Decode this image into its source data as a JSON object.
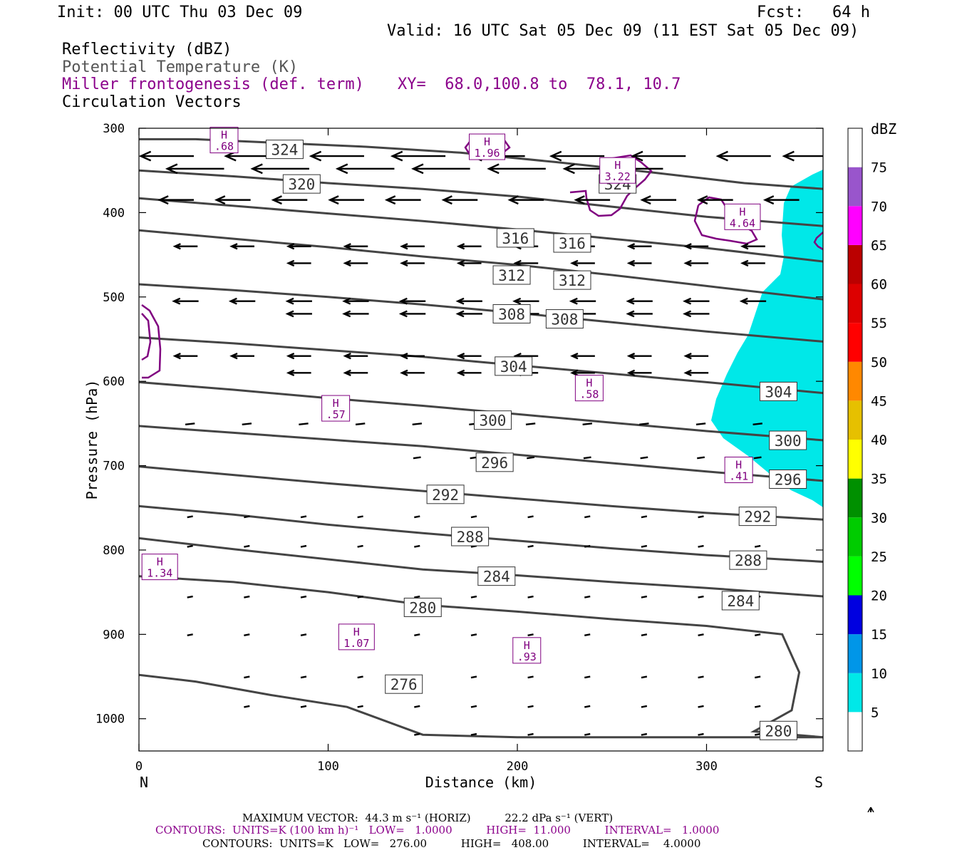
{
  "header": {
    "init": "Init: 00 UTC Thu 03 Dec 09",
    "fcst": "Fcst:   64 h",
    "valid": "Valid: 16 UTC Sat 05 Dec 09 (11 EST Sat 05 Dec 09)",
    "field1": "Reflectivity (dBZ)",
    "field2": "Potential Temperature (K)",
    "field3": "Miller frontogenesis (def. term)",
    "xy": "XY=  68.0,100.8 to  78.1, 10.7",
    "field4": "Circulation Vectors"
  },
  "colors": {
    "theta": "#444444",
    "fronto": "#800080",
    "reflectivity_fill": "#00e8e8",
    "vector": "#000000"
  },
  "chart_data": {
    "type": "cross-section",
    "xlabel": "Distance (km)",
    "ylabel": "Pressure (hPa)",
    "x_ticks": [
      "0",
      "100",
      "200",
      "300"
    ],
    "x_tick_values": [
      0,
      100,
      200,
      300
    ],
    "xlim": [
      0,
      362
    ],
    "y_ticks": [
      "300",
      "400",
      "500",
      "600",
      "700",
      "800",
      "900",
      "1000"
    ],
    "y_tick_values": [
      300,
      400,
      500,
      600,
      700,
      800,
      900,
      1000
    ],
    "ylim": [
      1040,
      300
    ],
    "left_end": "N",
    "right_end": "S",
    "potential_temperature_contours": [
      {
        "label": "324",
        "points": [
          [
            0,
            313
          ],
          [
            30,
            313
          ],
          [
            70,
            317
          ],
          [
            120,
            322
          ],
          [
            170,
            329
          ],
          [
            220,
            340
          ],
          [
            270,
            352
          ],
          [
            320,
            365
          ],
          [
            362,
            372
          ]
        ],
        "label_positions": [
          [
            77,
            325
          ],
          [
            253,
            366
          ]
        ]
      },
      {
        "label": "320",
        "points": [
          [
            0,
            350
          ],
          [
            50,
            357
          ],
          [
            100,
            365
          ],
          [
            150,
            372
          ],
          [
            200,
            381
          ],
          [
            250,
            393
          ],
          [
            300,
            405
          ],
          [
            362,
            416
          ]
        ],
        "label_positions": [
          [
            86,
            366
          ]
        ]
      },
      {
        "label": "316",
        "points": [
          [
            0,
            383
          ],
          [
            50,
            392
          ],
          [
            100,
            401
          ],
          [
            150,
            410
          ],
          [
            200,
            420
          ],
          [
            250,
            431
          ],
          [
            300,
            442
          ],
          [
            362,
            458
          ]
        ],
        "label_positions": [
          [
            199,
            430
          ],
          [
            229,
            436
          ]
        ]
      },
      {
        "label": "312",
        "points": [
          [
            0,
            421
          ],
          [
            50,
            431
          ],
          [
            100,
            441
          ],
          [
            150,
            452
          ],
          [
            200,
            462
          ],
          [
            250,
            474
          ],
          [
            300,
            487
          ],
          [
            362,
            503
          ]
        ],
        "label_positions": [
          [
            197,
            474
          ],
          [
            229,
            480
          ]
        ]
      },
      {
        "label": "308",
        "points": [
          [
            0,
            485
          ],
          [
            50,
            492
          ],
          [
            100,
            500
          ],
          [
            150,
            509
          ],
          [
            200,
            519
          ],
          [
            250,
            530
          ],
          [
            300,
            541
          ],
          [
            362,
            553
          ]
        ],
        "label_positions": [
          [
            197,
            520
          ],
          [
            225,
            526
          ]
        ]
      },
      {
        "label": "304",
        "points": [
          [
            0,
            548
          ],
          [
            50,
            555
          ],
          [
            100,
            563
          ],
          [
            150,
            571
          ],
          [
            200,
            581
          ],
          [
            250,
            591
          ],
          [
            300,
            601
          ],
          [
            362,
            614
          ]
        ],
        "label_positions": [
          [
            198,
            582
          ],
          [
            338,
            612
          ]
        ]
      },
      {
        "label": "300",
        "points": [
          [
            0,
            601
          ],
          [
            50,
            610
          ],
          [
            100,
            620
          ],
          [
            150,
            629
          ],
          [
            200,
            639
          ],
          [
            250,
            649
          ],
          [
            300,
            659
          ],
          [
            362,
            670
          ]
        ],
        "label_positions": [
          [
            187,
            646
          ],
          [
            343,
            670
          ]
        ]
      },
      {
        "label": "296",
        "points": [
          [
            0,
            653
          ],
          [
            50,
            661
          ],
          [
            100,
            669
          ],
          [
            150,
            677
          ],
          [
            200,
            687
          ],
          [
            250,
            697
          ],
          [
            300,
            707
          ],
          [
            362,
            718
          ]
        ],
        "label_positions": [
          [
            188,
            696
          ],
          [
            343,
            716
          ]
        ]
      },
      {
        "label": "292",
        "points": [
          [
            0,
            701
          ],
          [
            50,
            711
          ],
          [
            100,
            721
          ],
          [
            150,
            730
          ],
          [
            200,
            739
          ],
          [
            250,
            748
          ],
          [
            300,
            756
          ],
          [
            362,
            764
          ]
        ],
        "label_positions": [
          [
            162,
            734
          ],
          [
            327,
            760
          ]
        ]
      },
      {
        "label": "288",
        "points": [
          [
            0,
            748
          ],
          [
            50,
            758
          ],
          [
            100,
            770
          ],
          [
            150,
            780
          ],
          [
            200,
            789
          ],
          [
            250,
            798
          ],
          [
            300,
            806
          ],
          [
            362,
            814
          ]
        ],
        "label_positions": [
          [
            175,
            784
          ],
          [
            322,
            812
          ]
        ]
      },
      {
        "label": "284",
        "points": [
          [
            0,
            786
          ],
          [
            50,
            799
          ],
          [
            100,
            811
          ],
          [
            150,
            823
          ],
          [
            200,
            830
          ],
          [
            250,
            838
          ],
          [
            300,
            845
          ],
          [
            362,
            855
          ]
        ],
        "label_positions": [
          [
            189,
            831
          ],
          [
            318,
            860
          ]
        ]
      },
      {
        "label": "280",
        "points": [
          [
            0,
            831
          ],
          [
            50,
            838
          ],
          [
            100,
            850
          ],
          [
            150,
            865
          ],
          [
            200,
            873
          ],
          [
            250,
            882
          ],
          [
            300,
            890
          ],
          [
            340,
            900
          ],
          [
            349,
            945
          ],
          [
            345,
            990
          ],
          [
            325,
            1015
          ],
          [
            362,
            1022
          ]
        ],
        "label_positions": [
          [
            150,
            868
          ],
          [
            338,
            1014
          ]
        ]
      },
      {
        "label": "276",
        "points": [
          [
            0,
            948
          ],
          [
            30,
            956
          ],
          [
            70,
            972
          ],
          [
            110,
            986
          ],
          [
            150,
            1019
          ],
          [
            200,
            1022
          ],
          [
            260,
            1022
          ],
          [
            362,
            1022
          ]
        ],
        "label_positions": [
          [
            140,
            959
          ]
        ]
      }
    ],
    "frontogenesis_maxima": [
      {
        "value": "H .68",
        "x": 45,
        "p": 314
      },
      {
        "value": "H 1.96",
        "x": 184,
        "p": 322
      },
      {
        "value": "H 3.22",
        "x": 253,
        "p": 350
      },
      {
        "value": "H 4.64",
        "x": 319,
        "p": 405
      },
      {
        "value": "H .58",
        "x": 238,
        "p": 608
      },
      {
        "value": "H .57",
        "x": 104,
        "p": 632
      },
      {
        "value": "H .41",
        "x": 317,
        "p": 705
      },
      {
        "value": "H 1.34",
        "x": 11,
        "p": 820
      },
      {
        "value": "H 1.07",
        "x": 115,
        "p": 903
      },
      {
        "value": "H .93",
        "x": 205,
        "p": 919
      }
    ],
    "reflectivity_region": {
      "min_dbz": 5,
      "max_dbz": 10
    },
    "colorbar": {
      "title": "dBZ",
      "labels": [
        "5",
        "10",
        "15",
        "20",
        "25",
        "30",
        "35",
        "40",
        "45",
        "50",
        "55",
        "60",
        "65",
        "70",
        "75"
      ],
      "colors": [
        "#ffffff",
        "#00e8e8",
        "#0096e8",
        "#0000e0",
        "#00ff00",
        "#00cc00",
        "#009000",
        "#ffff00",
        "#e6c000",
        "#ff8800",
        "#ff0000",
        "#dd0000",
        "#bb0000",
        "#ff00ff",
        "#9955cc",
        "#ffffff"
      ]
    },
    "vectors": {
      "rows": [
        {
          "p": 333,
          "xs": [
            15,
            60,
            105,
            148,
            190,
            232,
            275,
            320,
            355
          ],
          "len": 28
        },
        {
          "p": 348,
          "xs": [
            30,
            75,
            120,
            160,
            200,
            240,
            262
          ],
          "len": 30
        },
        {
          "p": 385,
          "xs": [
            20,
            50,
            80,
            110,
            140,
            170,
            205,
            240,
            275,
            305,
            340
          ],
          "len": 18
        },
        {
          "p": 440,
          "xs": [
            25,
            55,
            85,
            115,
            145,
            175,
            205,
            235,
            265,
            295,
            325
          ],
          "len": 12
        },
        {
          "p": 460,
          "xs": [
            85,
            115,
            145,
            175,
            205,
            235,
            265,
            295,
            325
          ],
          "len": 12
        },
        {
          "p": 505,
          "xs": [
            25,
            55,
            85,
            115,
            145,
            175,
            205,
            235,
            265,
            295,
            325
          ],
          "len": 13
        },
        {
          "p": 520,
          "xs": [
            85,
            115,
            145,
            175,
            205,
            235,
            265,
            295
          ],
          "len": 13
        },
        {
          "p": 570,
          "xs": [
            25,
            55,
            85,
            115,
            145,
            175,
            205,
            235,
            265,
            295
          ],
          "len": 12
        },
        {
          "p": 590,
          "xs": [
            85,
            115,
            145,
            175,
            205,
            235,
            265,
            295
          ],
          "len": 12
        },
        {
          "p": 650,
          "xs": [
            27,
            57,
            87,
            117,
            147,
            177,
            207,
            237,
            267,
            297,
            327
          ],
          "len": 5
        },
        {
          "p": 690,
          "xs": [
            147,
            177,
            207,
            237,
            267,
            297,
            327
          ],
          "len": 4
        },
        {
          "p": 760,
          "xs": [
            27,
            57,
            87,
            117,
            147,
            177,
            207,
            237,
            267,
            297,
            327
          ],
          "len": 3
        },
        {
          "p": 795,
          "xs": [
            27,
            57,
            87,
            117,
            147,
            177,
            207,
            237,
            267,
            297,
            327
          ],
          "len": 3
        },
        {
          "p": 855,
          "xs": [
            27,
            57,
            87,
            117,
            147,
            177,
            207,
            237,
            267,
            297,
            327
          ],
          "len": 3
        },
        {
          "p": 900,
          "xs": [
            27,
            57,
            87,
            117,
            147,
            177,
            207,
            237,
            267,
            297,
            327
          ],
          "len": 3
        },
        {
          "p": 950,
          "xs": [
            57,
            87,
            117,
            147,
            177,
            207,
            237,
            267,
            297,
            327
          ],
          "len": 3
        },
        {
          "p": 985,
          "xs": [
            57,
            87,
            117,
            147,
            177,
            207,
            237,
            267,
            297,
            327
          ],
          "len": 3
        },
        {
          "p": 1018,
          "xs": [
            147,
            177,
            207,
            237,
            267,
            297,
            327
          ],
          "len": 3
        }
      ]
    }
  },
  "footer": {
    "max_vector": "MAXIMUM VECTOR:  44.3 m s⁻¹ (HORIZ)          22.2 dPa s⁻¹ (VERT)",
    "contours1": "CONTOURS:  UNITS=K (100 km h)⁻¹   LOW=   1.0000          HIGH=  11.000          INTERVAL=   1.0000",
    "contours2": "CONTOURS:  UNITS=K   LOW=   276.00          HIGH=   408.00          INTERVAL=    4.0000"
  }
}
